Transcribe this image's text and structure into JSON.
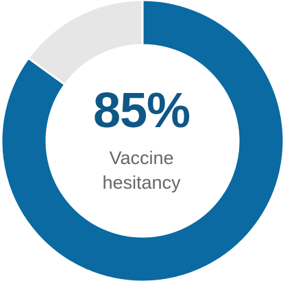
{
  "chart_data": {
    "type": "pie",
    "style": "donut",
    "categories": [
      "Vaccine hesitancy",
      "Remainder"
    ],
    "values": [
      85,
      15
    ],
    "unit": "%",
    "center_value": "85%",
    "center_label_lines": [
      "Vaccine",
      "hesitancy"
    ],
    "start_angle": "12 o'clock",
    "direction": "clockwise",
    "title": "",
    "legend": "none",
    "colors": {
      "primary": "#0a6aa1",
      "remainder": "#e6e6e6",
      "value_text": "#0f5786",
      "label_text": "#666666",
      "separator": "#ffffff"
    }
  }
}
